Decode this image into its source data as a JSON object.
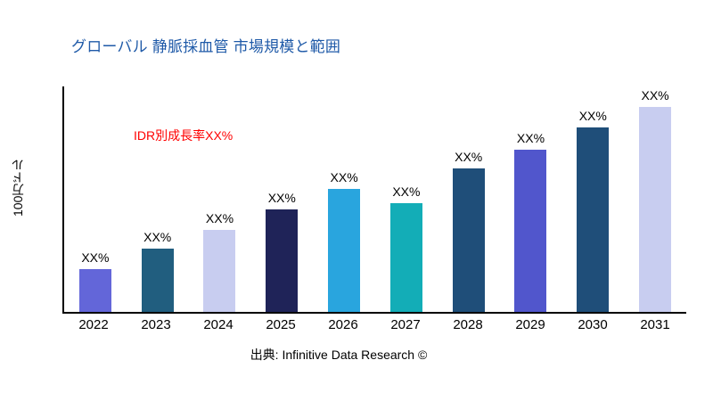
{
  "title": "グローバル 静脈採血管 市場規模と範囲",
  "y_axis_label": "100万ドル",
  "annotation": {
    "text": "IDR別成長率XX%",
    "color": "#FF0000"
  },
  "source": "出典: Infinitive Data Research ©",
  "colors": {
    "title": "#1F5AA8",
    "axis": "#000000"
  },
  "chart_data": {
    "type": "bar",
    "title": "グローバル 静脈採血管 市場規模と範囲",
    "xlabel": "",
    "ylabel": "100万ドル",
    "categories": [
      "2022",
      "2023",
      "2024",
      "2025",
      "2026",
      "2027",
      "2028",
      "2029",
      "2030",
      "2031"
    ],
    "values": [
      21,
      31,
      40,
      50,
      60,
      53,
      70,
      79,
      90,
      100
    ],
    "values_note": "relative heights; actual figures shown only as XX% placeholders",
    "bar_labels": [
      "XX%",
      "XX%",
      "XX%",
      "XX%",
      "XX%",
      "XX%",
      "XX%",
      "XX%",
      "XX%",
      "XX%"
    ],
    "bar_colors": [
      "#6366D9",
      "#215E7F",
      "#C8CDF0",
      "#1F2358",
      "#29A5DE",
      "#13ADB7",
      "#1F4E79",
      "#5156CC",
      "#1F4E79",
      "#C8CDF0"
    ],
    "ylim": [
      0,
      110
    ],
    "grid": false,
    "legend": "none"
  }
}
